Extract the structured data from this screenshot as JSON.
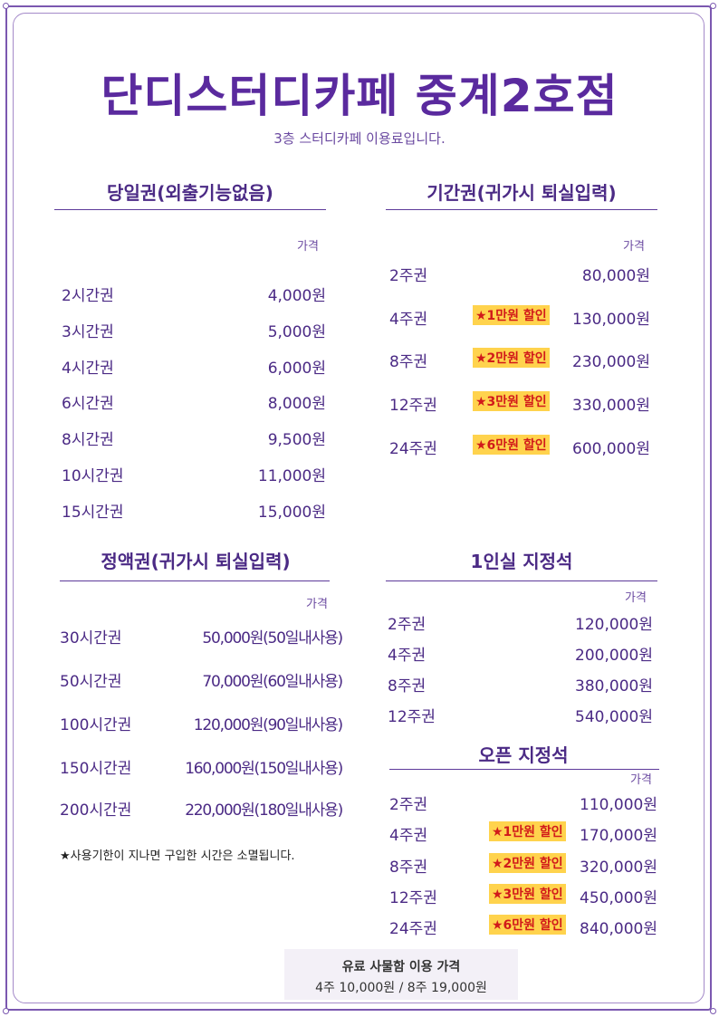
{
  "title": "단디스터디카페 중계2호점",
  "subtitle": "3층 스터디카페 이용료입니다.",
  "price_header": "가격",
  "daily": {
    "title": "당일권(외출기능없음)",
    "rows": [
      {
        "name": "2시간권",
        "price": "4,000원"
      },
      {
        "name": "3시간권",
        "price": "5,000원"
      },
      {
        "name": "4시간권",
        "price": "6,000원"
      },
      {
        "name": "6시간권",
        "price": "8,000원"
      },
      {
        "name": "8시간권",
        "price": "9,500원"
      },
      {
        "name": "10시간권",
        "price": "11,000원"
      },
      {
        "name": "15시간권",
        "price": "15,000원"
      }
    ]
  },
  "period": {
    "title": "기간권(귀가시 퇴실입력)",
    "rows": [
      {
        "name": "2주권",
        "badge": "",
        "price": "80,000원"
      },
      {
        "name": "4주권",
        "badge": "★1만원 할인",
        "price": "130,000원"
      },
      {
        "name": "8주권",
        "badge": "★2만원 할인",
        "price": "230,000원"
      },
      {
        "name": "12주권",
        "badge": "★3만원 할인",
        "price": "330,000원"
      },
      {
        "name": "24주권",
        "badge": "★6만원 할인",
        "price": "600,000원"
      }
    ]
  },
  "fixed_amount": {
    "title": "정액권(귀가시 퇴실입력)",
    "rows": [
      {
        "name": "30시간권",
        "price": "50,000원(50일내사용)"
      },
      {
        "name": "50시간권",
        "price": "70,000원(60일내사용)"
      },
      {
        "name": "100시간권",
        "price": "120,000원(90일내사용)"
      },
      {
        "name": "150시간권",
        "price": "160,000원(150일내사용)"
      },
      {
        "name": "200시간권",
        "price": "220,000원(180일내사용)"
      }
    ],
    "footnote": "★사용기한이 지나면 구입한 시간은 소멸됩니다."
  },
  "single_room": {
    "title": "1인실 지정석",
    "rows": [
      {
        "name": "2주권",
        "price": "120,000원"
      },
      {
        "name": "4주권",
        "price": "200,000원"
      },
      {
        "name": "8주권",
        "price": "380,000원"
      },
      {
        "name": "12주권",
        "price": "540,000원"
      }
    ]
  },
  "open_seat": {
    "title": "오픈 지정석",
    "rows": [
      {
        "name": "2주권",
        "badge": "",
        "price": "110,000원"
      },
      {
        "name": "4주권",
        "badge": "★1만원 할인",
        "price": "170,000원"
      },
      {
        "name": "8주권",
        "badge": "★2만원 할인",
        "price": "320,000원"
      },
      {
        "name": "12주권",
        "badge": "★3만원 할인",
        "price": "450,000원"
      },
      {
        "name": "24주권",
        "badge": "★6만원 할인",
        "price": "840,000원"
      }
    ]
  },
  "locker": {
    "title": "유료 사물함 이용 가격",
    "prices": "4주 10,000원 / 8주 19,000원"
  },
  "colors": {
    "title": "#5a2a9e",
    "text": "#4b2a85",
    "badge_bg": "#ffd34d",
    "badge_text": "#d11a1a"
  }
}
